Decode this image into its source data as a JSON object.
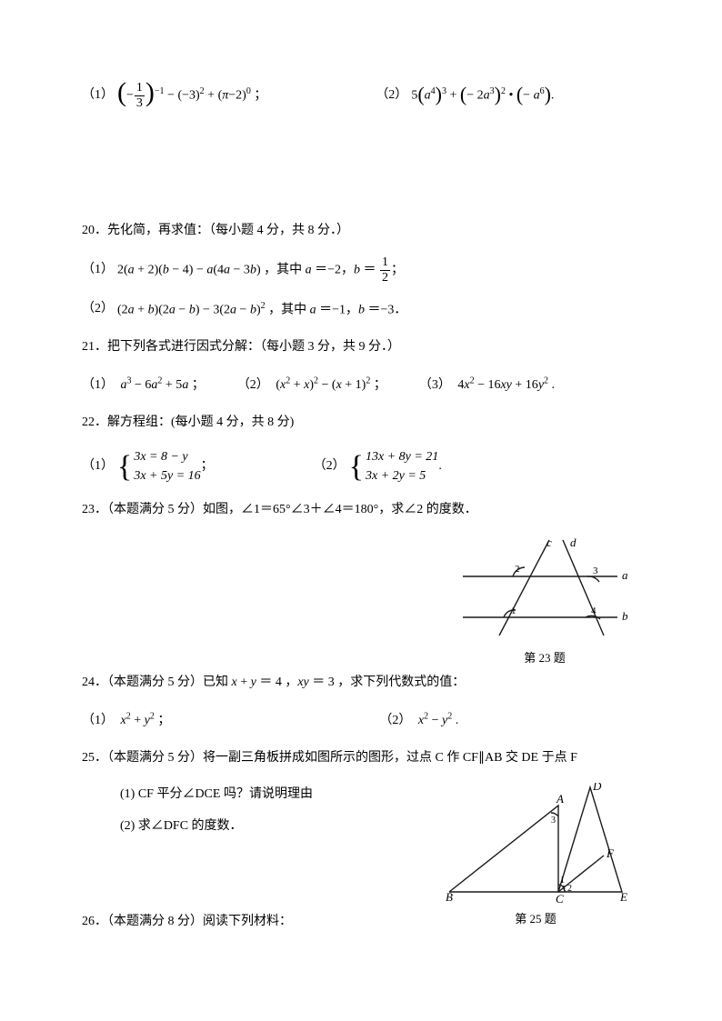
{
  "q19": {
    "p1_label": "（1）",
    "p1_math_html": "<span class='lparen-big'>(</span>−<span class='frac'><span class='num'>1</span><span class='den'>3</span></span><span class='rparen-big'>)</span><span class='sup'>−1</span> − (−3)<span class='sup'>2</span> + (<span class='math'>π</span>−2)<span class='sup'>0</span> ；",
    "p2_label": "（2）",
    "p2_math_html": "5<span class='lparen-big' style='font-size:22px'>(</span><span class='math'>a</span><span class='sup'>4</span><span class='rparen-big' style='font-size:22px'>)</span><span class='sup'>3</span> + <span class='lparen-big' style='font-size:22px'>(</span>− 2<span class='math'>a</span><span class='sup'>3</span><span class='rparen-big' style='font-size:22px'>)</span><span class='sup'>2</span> • <span class='lparen-big' style='font-size:22px'>(</span>− <span class='math'>a</span><span class='sup'>6</span><span class='rparen-big' style='font-size:22px'>)</span>."
  },
  "q20": {
    "heading": "20．先化简，再求值：（每小题 4 分，共 8 分．）",
    "p1_label": "（1）",
    "p1_math_html": "2(<span class='math'>a</span> + 2)(<span class='math'>b</span> − 4) − <span class='math'>a</span>(4<span class='math'>a</span> − 3<span class='math'>b</span>) ，其中 <span class='math'>a</span> ＝−2，<span class='math'>b</span> ＝ <span class='frac'><span class='num'>1</span><span class='den'>2</span></span>；",
    "p2_label": "（2）",
    "p2_math_html": "(2<span class='math'>a</span> + <span class='math'>b</span>)(2<span class='math'>a</span> − <span class='math'>b</span>) − 3(2<span class='math'>a</span> − <span class='math'>b</span>)<span class='sup'>2</span> ，其中 <span class='math'>a</span> ＝−1，<span class='math'>b</span> ＝−3．"
  },
  "q21": {
    "heading": "21．把下列各式进行因式分解：（每小题 3 分，共 9 分．）",
    "p1_label": "（1）",
    "p1_math_html": "<span class='math'>a</span><span class='sup'>3</span> − 6<span class='math'>a</span><span class='sup'>2</span> + 5<span class='math'>a</span> ；",
    "p2_label": "（2）",
    "p2_math_html": "(<span class='math'>x</span><span class='sup'>2</span> + <span class='math'>x</span>)<span class='sup'>2</span> − (<span class='math'>x</span> + 1)<span class='sup'>2</span> ；",
    "p3_label": "（3）",
    "p3_math_html": "4<span class='math'>x</span><span class='sup'>2</span> − 16<span class='math'>xy</span> + 16<span class='math'>y</span><span class='sup'>2</span> ."
  },
  "q22": {
    "heading": "22．解方程组：(每小题 4 分，共 8 分)",
    "p1_label": "（1）",
    "p1_eq1": "3x = 8 − y",
    "p1_eq2": "3x + 5y = 16",
    "p1_suffix": "；",
    "p2_label": "（2）",
    "p2_eq1": "13x + 8y = 21",
    "p2_eq2": "3x + 2y = 5",
    "p2_suffix": "."
  },
  "q23": {
    "heading": "23．（本题满分 5 分）如图，∠1＝65°∠3＋∠4＝180°，求∠2 的度数．",
    "caption": "第 23 题",
    "labels": {
      "a": "a",
      "b": "b",
      "c": "c",
      "d": "d",
      "n1": "1",
      "n2": "2",
      "n3": "3",
      "n4": "4"
    }
  },
  "q24": {
    "heading": "24．（本题满分 5 分）已知 x + y ＝ 4 ，xy ＝ 3 ，求下列代数式的值：",
    "p1_label": "（1）",
    "p1_math_html": "<span class='math'>x</span><span class='sup'>2</span> + <span class='math'>y</span><span class='sup'>2</span> ；",
    "p2_label": "（2）",
    "p2_math_html": "<span class='math'>x</span><span class='sup'>2</span> − <span class='math'>y</span><span class='sup'>2</span> ."
  },
  "q25": {
    "heading": "25．（本题满分 5 分）将一副三角板拼成如图所示的图形，过点 C 作 CF∥AB 交 DE 于点 F",
    "sub1": "(1) CF 平分∠DCE 吗？请说明理由",
    "sub2": "(2) 求∠DFC 的度数．",
    "caption": "第 25 题",
    "labels": {
      "A": "A",
      "B": "B",
      "C": "C",
      "D": "D",
      "E": "E",
      "F": "F",
      "n1": "1",
      "n2": "2",
      "n3": "3"
    }
  },
  "q26": {
    "heading": "26．（本题满分 8 分）阅读下列材料："
  },
  "colors": {
    "text": "#000000",
    "background": "#ffffff",
    "stroke": "#1a1a1a"
  }
}
